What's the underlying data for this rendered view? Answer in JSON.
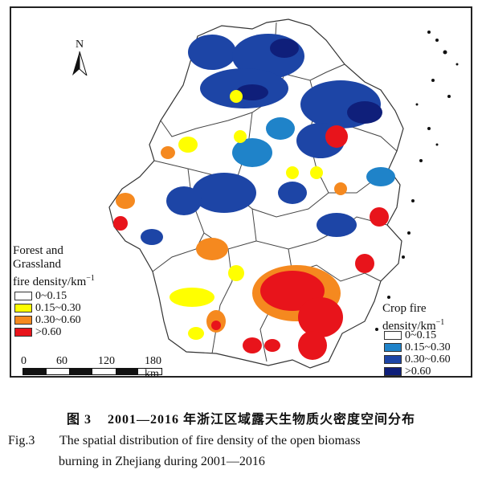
{
  "map": {
    "north_label": "N",
    "forest_legend": {
      "title_lines": [
        "Forest and",
        "Grassland",
        "fire density/km"
      ],
      "unit_superscript": "−1",
      "classes": [
        {
          "label": "0~0.15",
          "color": "#ffffff"
        },
        {
          "label": "0.15~0.30",
          "color": "#ffff00"
        },
        {
          "label": "0.30~0.60",
          "color": "#f5891f"
        },
        {
          "label": ">0.60",
          "color": "#e8141b"
        }
      ]
    },
    "crop_legend": {
      "title_lines": [
        "Crop fire",
        "density/km"
      ],
      "unit_superscript": "−1",
      "classes": [
        {
          "label": "0~0.15",
          "color": "#ffffff"
        },
        {
          "label": "0.15~0.30",
          "color": "#1f83c9"
        },
        {
          "label": "0.30~0.60",
          "color": "#1d45a6"
        },
        {
          "label": ">0.60",
          "color": "#0f1f7a"
        }
      ]
    },
    "scale_bar": {
      "ticks": [
        "0",
        "60",
        "120",
        "180 km"
      ]
    }
  },
  "caption": {
    "chinese_fig": "图 3",
    "chinese_title": "2001—2016 年浙江区域露天生物质火密度空间分布",
    "english_fig": "Fig.3",
    "english_line1": "The spatial distribution of fire density of the open biomass",
    "english_line2": "burning in Zhejiang during 2001—2016"
  }
}
